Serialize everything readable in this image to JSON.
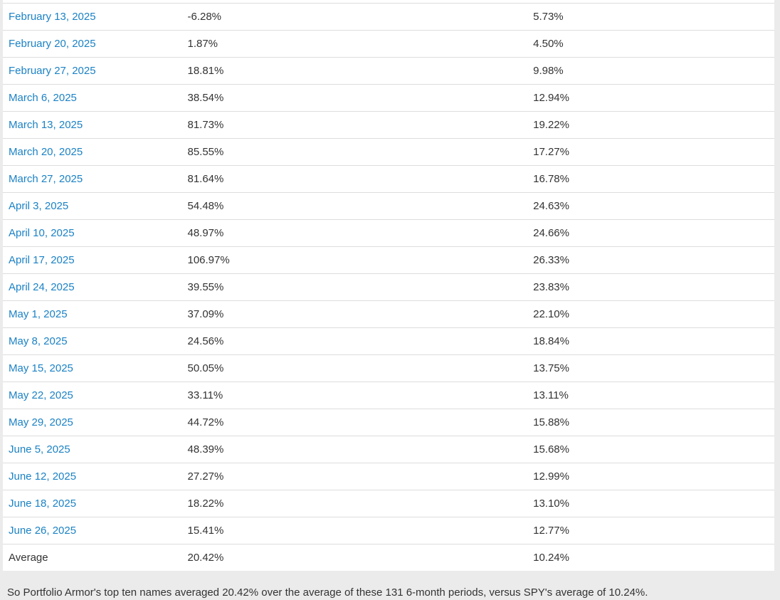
{
  "colors": {
    "link_blue": "#1b82c5",
    "body_text": "#333333",
    "row_border": "#dddddd",
    "page_background": "#ebebeb",
    "row_background": "#ffffff"
  },
  "table": {
    "rows": [
      {
        "date": "February 13, 2025",
        "top_ten": "-6.28%",
        "spy": "5.73%"
      },
      {
        "date": "February 20, 2025",
        "top_ten": "1.87%",
        "spy": "4.50%"
      },
      {
        "date": "February 27, 2025",
        "top_ten": "18.81%",
        "spy": "9.98%"
      },
      {
        "date": "March 6, 2025",
        "top_ten": "38.54%",
        "spy": "12.94%"
      },
      {
        "date": "March 13, 2025",
        "top_ten": "81.73%",
        "spy": "19.22%"
      },
      {
        "date": "March 20, 2025",
        "top_ten": "85.55%",
        "spy": "17.27%"
      },
      {
        "date": "March 27, 2025",
        "top_ten": "81.64%",
        "spy": "16.78%"
      },
      {
        "date": "April 3, 2025",
        "top_ten": "54.48%",
        "spy": "24.63%"
      },
      {
        "date": "April 10, 2025",
        "top_ten": "48.97%",
        "spy": "24.66%"
      },
      {
        "date": "April 17, 2025",
        "top_ten": "106.97%",
        "spy": "26.33%"
      },
      {
        "date": "April 24, 2025",
        "top_ten": "39.55%",
        "spy": "23.83%"
      },
      {
        "date": "May 1, 2025",
        "top_ten": "37.09%",
        "spy": "22.10%"
      },
      {
        "date": "May 8, 2025",
        "top_ten": "24.56%",
        "spy": "18.84%"
      },
      {
        "date": "May 15, 2025",
        "top_ten": "50.05%",
        "spy": "13.75%"
      },
      {
        "date": "May 22, 2025",
        "top_ten": "33.11%",
        "spy": "13.11%"
      },
      {
        "date": "May 29, 2025",
        "top_ten": "44.72%",
        "spy": "15.88%"
      },
      {
        "date": "June 5, 2025",
        "top_ten": "48.39%",
        "spy": "15.68%"
      },
      {
        "date": "June 12, 2025",
        "top_ten": "27.27%",
        "spy": "12.99%"
      },
      {
        "date": "June 18, 2025",
        "top_ten": "18.22%",
        "spy": "13.10%"
      },
      {
        "date": "June 26, 2025",
        "top_ten": "15.41%",
        "spy": "12.77%"
      }
    ],
    "average_row": {
      "label": "Average",
      "top_ten": "20.42%",
      "spy": "10.24%"
    }
  },
  "footer": {
    "text": "So Portfolio Armor's top ten names averaged 20.42% over the average of these 131 6-month periods, versus SPY's average of 10.24%."
  }
}
